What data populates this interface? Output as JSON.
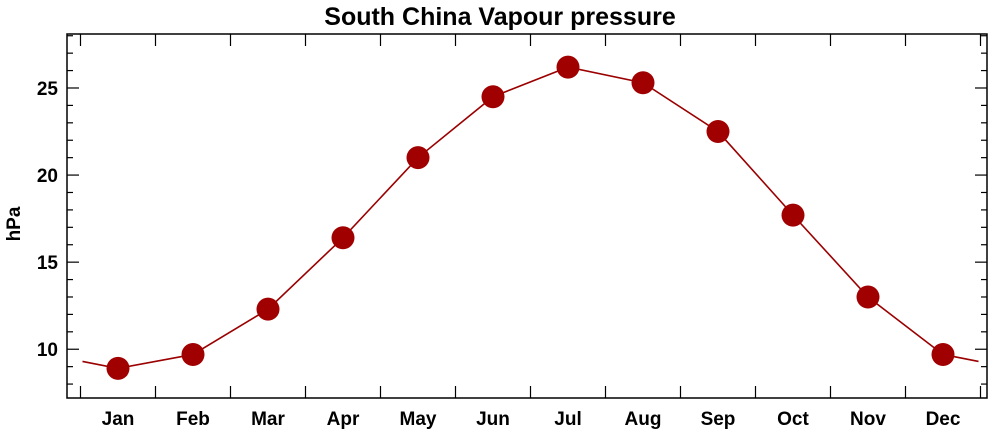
{
  "chart_data": {
    "type": "line",
    "title": "South China Vapour pressure",
    "xlabel": "",
    "ylabel": "hPa",
    "categories": [
      "Jan",
      "Feb",
      "Mar",
      "Apr",
      "May",
      "Jun",
      "Jul",
      "Aug",
      "Sep",
      "Oct",
      "Nov",
      "Dec"
    ],
    "series": [
      {
        "values": [
          8.9,
          9.7,
          12.3,
          16.4,
          21.0,
          24.5,
          26.2,
          25.3,
          22.5,
          17.7,
          13.0,
          9.7
        ]
      }
    ],
    "line_ends": {
      "before_jan": 9.3,
      "after_dec": 9.3
    },
    "ylim": [
      7.2,
      28.1
    ],
    "yticks": [
      10,
      15,
      20,
      25
    ],
    "grid": false,
    "colors": {
      "line": "#9b0000",
      "marker": "#a00000",
      "axis": "#000000"
    }
  }
}
